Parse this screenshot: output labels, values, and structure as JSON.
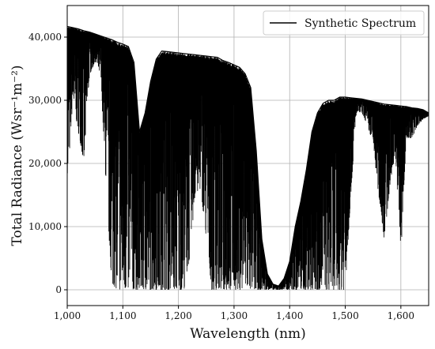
{
  "chart_data": {
    "type": "line",
    "title": "",
    "xlabel": "Wavelength (nm)",
    "ylabel": "Total Radiance (Wsr⁻¹m⁻²)",
    "xlim": [
      1000,
      1650
    ],
    "ylim": [
      -2500,
      45000
    ],
    "grid": true,
    "legend": {
      "placement": "top-right"
    },
    "x_ticks": [
      1000,
      1100,
      1200,
      1300,
      1400,
      1500,
      1600
    ],
    "x_tick_labels": [
      "1,000",
      "1,100",
      "1,200",
      "1,300",
      "1,400",
      "1,500",
      "1,600"
    ],
    "y_ticks": [
      0,
      10000,
      20000,
      30000,
      40000
    ],
    "y_tick_labels": [
      "0",
      "10,000",
      "20,000",
      "30,000",
      "40,000"
    ],
    "series": [
      {
        "name": "Synthetic Spectrum",
        "color": "#000000",
        "upper_envelope": {
          "x": [
            1000,
            1010,
            1020,
            1030,
            1040,
            1050,
            1060,
            1070,
            1080,
            1090,
            1100,
            1110,
            1120,
            1130,
            1140,
            1150,
            1160,
            1170,
            1180,
            1190,
            1200,
            1210,
            1220,
            1230,
            1240,
            1250,
            1260,
            1270,
            1280,
            1290,
            1300,
            1310,
            1320,
            1330,
            1340,
            1350,
            1360,
            1370,
            1380,
            1390,
            1400,
            1410,
            1420,
            1430,
            1440,
            1450,
            1460,
            1470,
            1480,
            1490,
            1500,
            1510,
            1520,
            1530,
            1540,
            1550,
            1560,
            1570,
            1580,
            1590,
            1600,
            1610,
            1620,
            1630,
            1640,
            1650
          ],
          "y": [
            41700,
            41500,
            41300,
            41000,
            40800,
            40500,
            40200,
            39900,
            39600,
            39200,
            38900,
            38500,
            36000,
            25000,
            28000,
            33000,
            36500,
            37800,
            37700,
            37600,
            37500,
            37400,
            37300,
            37200,
            37100,
            37000,
            36900,
            36800,
            36300,
            36000,
            35600,
            35200,
            34200,
            32000,
            22000,
            8000,
            2500,
            900,
            600,
            1800,
            4500,
            10000,
            14000,
            19000,
            25000,
            28000,
            29500,
            30000,
            30000,
            30500,
            30500,
            30400,
            30300,
            30200,
            30000,
            29800,
            29600,
            29400,
            29300,
            29200,
            29100,
            29000,
            28800,
            28700,
            28500,
            28000
          ]
        },
        "lower_envelope": {
          "x": [
            1000,
            1010,
            1020,
            1030,
            1040,
            1050,
            1060,
            1070,
            1080,
            1090,
            1100,
            1110,
            1120,
            1130,
            1140,
            1150,
            1160,
            1170,
            1180,
            1190,
            1200,
            1210,
            1220,
            1230,
            1240,
            1250,
            1260,
            1270,
            1280,
            1290,
            1300,
            1310,
            1320,
            1330,
            1340,
            1350,
            1360,
            1370,
            1380,
            1390,
            1400,
            1410,
            1420,
            1430,
            1440,
            1450,
            1460,
            1470,
            1480,
            1490,
            1500,
            1510,
            1520,
            1530,
            1540,
            1550,
            1560,
            1570,
            1580,
            1590,
            1600,
            1610,
            1620,
            1630,
            1640,
            1650
          ],
          "y": [
            16000,
            30000,
            25000,
            20000,
            34000,
            36000,
            34000,
            16000,
            1000,
            0,
            0,
            0,
            0,
            0,
            0,
            0,
            0,
            0,
            0,
            0,
            0,
            0,
            5000,
            15000,
            16000,
            8000,
            0,
            0,
            0,
            0,
            0,
            0,
            0,
            0,
            0,
            0,
            0,
            0,
            0,
            0,
            0,
            0,
            0,
            0,
            0,
            0,
            0,
            0,
            0,
            0,
            0,
            15000,
            28000,
            28000,
            26000,
            23000,
            15000,
            8000,
            16000,
            22000,
            5000,
            24000,
            24000,
            26000,
            27000,
            27500
          ]
        }
      }
    ]
  }
}
